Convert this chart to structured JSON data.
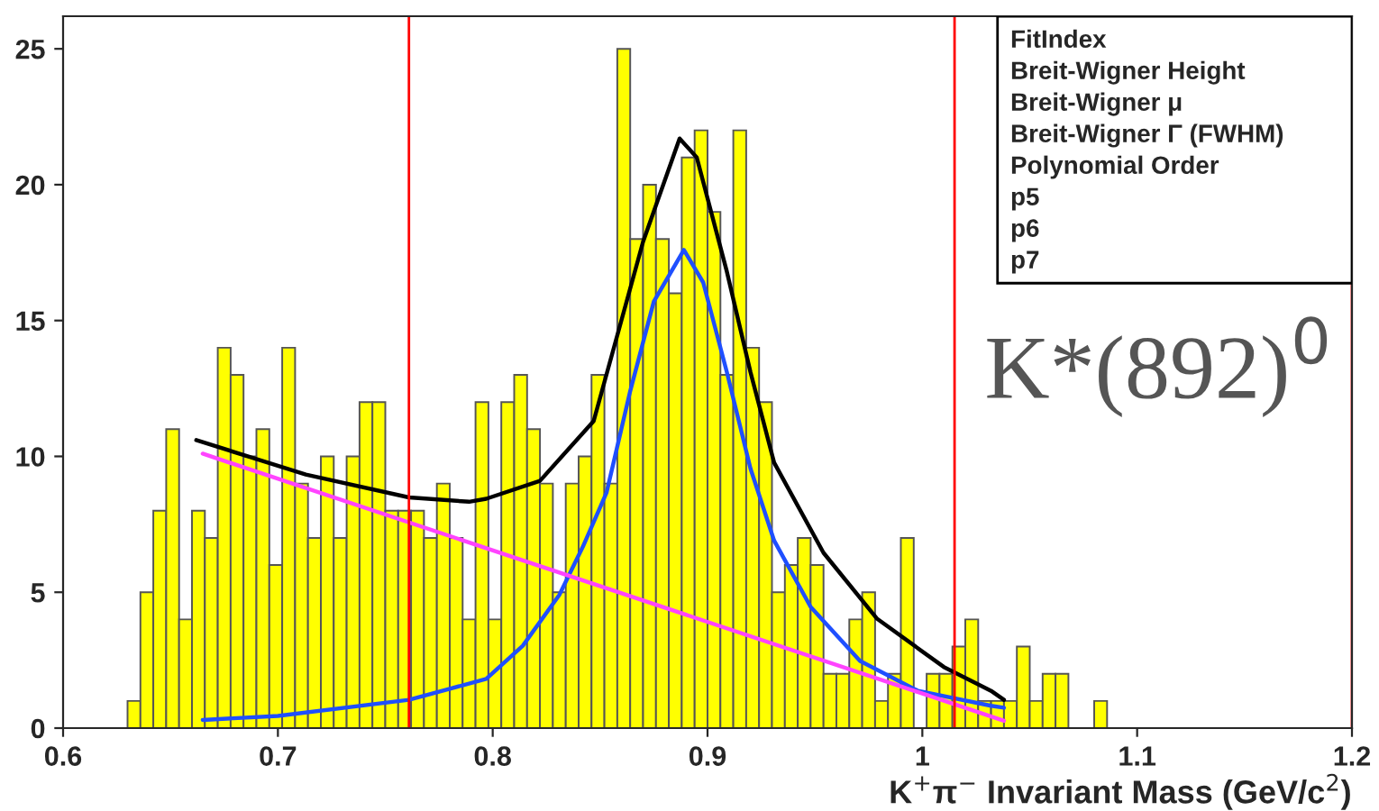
{
  "chart_data": {
    "type": "histogram",
    "xlabel": "K$^{+}$π$^{−}$ Invariant Mass (GeV/c$^{2}$)",
    "bins": [
      0.6,
      0.606,
      0.612,
      0.618,
      0.624,
      0.63,
      0.636,
      0.642,
      0.648,
      0.654,
      0.66,
      0.666,
      0.672,
      0.678,
      0.684,
      0.69,
      0.696,
      0.702,
      0.708,
      0.714,
      0.72,
      0.726,
      0.732,
      0.738,
      0.744,
      0.75,
      0.756,
      0.762,
      0.768,
      0.774,
      0.78,
      0.786,
      0.792,
      0.798,
      0.804,
      0.81,
      0.816,
      0.822,
      0.828,
      0.834,
      0.84,
      0.846,
      0.852,
      0.858,
      0.864,
      0.87,
      0.876,
      0.882,
      0.888,
      0.894,
      0.9,
      0.906,
      0.912,
      0.918,
      0.924,
      0.93,
      0.936,
      0.942,
      0.948,
      0.954,
      0.96,
      0.966,
      0.972,
      0.978,
      0.984,
      0.99,
      0.996,
      1.002,
      1.008,
      1.014,
      1.02,
      1.026,
      1.032,
      1.038,
      1.044,
      1.05,
      1.056,
      1.062,
      1.068,
      1.074,
      1.08,
      1.086,
      1.092,
      1.098,
      1.104,
      1.11,
      1.116,
      1.122,
      1.128,
      1.134,
      1.14,
      1.146,
      1.152,
      1.158,
      1.164,
      1.17,
      1.176,
      1.182,
      1.188,
      1.194,
      1.2
    ],
    "values": [
      0,
      0,
      0,
      0,
      0,
      1,
      5,
      8,
      11,
      4,
      8,
      7,
      14,
      13,
      10,
      11,
      6,
      14,
      9,
      7,
      10,
      7,
      10,
      12,
      12,
      8,
      8,
      8,
      7,
      9,
      7,
      4,
      12,
      4,
      12,
      13,
      11,
      9,
      5,
      9,
      10,
      13,
      9,
      25,
      18,
      20,
      18,
      16,
      21,
      22,
      19,
      13,
      22,
      14,
      12,
      5,
      6,
      7,
      6,
      2,
      2,
      4,
      5,
      1,
      2,
      7,
      0,
      2,
      2,
      3,
      4,
      1,
      1,
      1,
      3,
      1,
      2,
      2,
      0,
      0,
      1,
      0,
      0,
      0,
      0,
      0,
      0,
      0,
      0,
      0,
      0,
      0,
      0,
      0,
      0,
      0,
      0,
      0,
      0,
      0
    ],
    "color": "#ffff00",
    "series": [
      {
        "type": "line",
        "color": "#000000",
        "x": [
          0.662,
          0.713,
          0.761,
          0.789,
          0.797,
          0.822,
          0.847,
          0.87,
          0.887,
          0.895,
          0.909,
          0.92,
          0.931,
          0.954,
          0.979,
          1.01,
          1.032,
          1.038
        ],
        "values": [
          10.6,
          9.33,
          8.49,
          8.33,
          8.44,
          9.1,
          11.3,
          17.9,
          21.7,
          21.0,
          16.8,
          13.1,
          9.77,
          6.45,
          4.02,
          2.25,
          1.37,
          1.04
        ]
      },
      {
        "type": "line",
        "color": "#1f4fff",
        "x": [
          0.665,
          0.7,
          0.761,
          0.797,
          0.814,
          0.831,
          0.842,
          0.853,
          0.864,
          0.875,
          0.889,
          0.898,
          0.909,
          0.92,
          0.931,
          0.948,
          0.971,
          0.998,
          1.032,
          1.038
        ],
        "values": [
          0.3,
          0.45,
          1.04,
          1.81,
          3.03,
          4.9,
          6.68,
          8.67,
          12.4,
          15.7,
          17.6,
          16.4,
          13.1,
          9.55,
          6.9,
          4.46,
          2.47,
          1.37,
          0.82,
          0.75
        ]
      },
      {
        "type": "line",
        "color": "#ff44ff",
        "x": [
          0.665,
          1.038
        ],
        "values": [
          10.1,
          0.27
        ]
      }
    ],
    "ref_lines": [
      {
        "axis": "x",
        "value": 0.761,
        "color": "#ff0000"
      },
      {
        "axis": "x",
        "value": 1.015,
        "color": "#ff0000"
      },
      {
        "axis": "x",
        "value": 1.2,
        "color": "#ff0000"
      }
    ],
    "xlim": [
      0.6,
      1.2
    ],
    "ylim": [
      0,
      26.2
    ],
    "xticks": [
      0.6,
      0.7,
      0.8,
      0.9,
      1,
      1.1,
      1.2
    ],
    "yticks": [
      0,
      5,
      10,
      15,
      20,
      25
    ],
    "grid": false,
    "legend": false,
    "annotations": [
      "FitIndex",
      "Breit-Wigner Height",
      "Breit-Wigner μ",
      "Breit-Wigner Γ (FWHM)",
      "Polynomial Order",
      "p5",
      "p6",
      "p7",
      "K*(892)$^{0}$"
    ]
  }
}
